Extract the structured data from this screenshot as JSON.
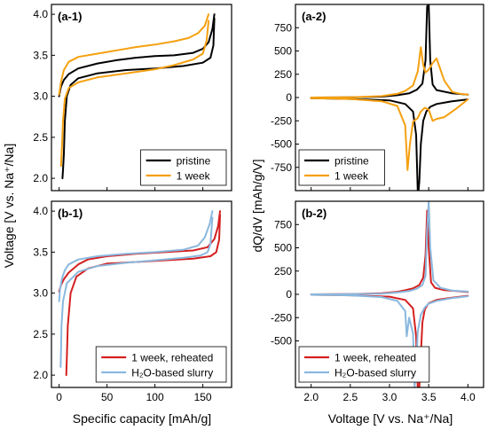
{
  "figure": {
    "left_ylabel": "Voltage [V vs. Na⁺/Na]",
    "left_xlabel": "Specific capacity [mAh/g]",
    "right_ylabel": "dQ/dV [mAh/g/V]",
    "right_xlabel": "Voltage [V vs. Na⁺/Na]"
  },
  "chart_data": [
    {
      "type": "line",
      "panel": "(a-1)",
      "title": "(a-1)",
      "xlabel": "Specific capacity [mAh/g]",
      "ylabel": "Voltage [V vs. Na⁺/Na]",
      "xlim": [
        -8,
        180
      ],
      "ylim": [
        1.85,
        4.12
      ],
      "xticks": [
        0,
        50,
        100,
        150
      ],
      "yticks": [
        2.0,
        2.5,
        3.0,
        3.5,
        4.0
      ],
      "ytick_labels": [
        "2.0",
        "2.5",
        "3.0",
        "3.5",
        "4.0"
      ],
      "show_xtick_labels": false,
      "legend_position": "bottom-right",
      "series": [
        {
          "name": "pristine",
          "color": "#000000",
          "charge": {
            "x": [
              0,
              2,
              5,
              10,
              20,
              40,
              60,
              80,
              100,
              120,
              140,
              150,
              156,
              160,
              162
            ],
            "y": [
              3.0,
              3.12,
              3.2,
              3.27,
              3.34,
              3.4,
              3.44,
              3.47,
              3.49,
              3.5,
              3.53,
              3.58,
              3.66,
              3.82,
              4.0
            ]
          },
          "discharge": {
            "x": [
              162,
              161,
              158,
              150,
              130,
              100,
              70,
              40,
              20,
              12,
              8,
              6,
              5,
              4,
              3.5
            ],
            "y": [
              3.95,
              3.62,
              3.47,
              3.41,
              3.37,
              3.34,
              3.32,
              3.28,
              3.22,
              3.14,
              3.0,
              2.7,
              2.3,
              2.1,
              2.0
            ]
          }
        },
        {
          "name": "1 week",
          "color": "#f5a010",
          "charge": {
            "x": [
              0,
              2,
              5,
              10,
              20,
              40,
              60,
              80,
              100,
              120,
              135,
              145,
              152,
              156
            ],
            "y": [
              3.02,
              3.18,
              3.32,
              3.42,
              3.48,
              3.52,
              3.56,
              3.6,
              3.63,
              3.67,
              3.71,
              3.77,
              3.86,
              4.0
            ]
          },
          "discharge": {
            "x": [
              156,
              154,
              150,
              140,
              120,
              100,
              70,
              40,
              20,
              10,
              6,
              4,
              3,
              2
            ],
            "y": [
              3.92,
              3.68,
              3.52,
              3.45,
              3.38,
              3.33,
              3.28,
              3.23,
              3.17,
              3.1,
              2.97,
              2.7,
              2.4,
              2.15
            ]
          }
        }
      ]
    },
    {
      "type": "line",
      "panel": "(a-2)",
      "title": "(a-2)",
      "xlabel": "",
      "ylabel": "dQ/dV [mAh/g/V]",
      "xlim": [
        1.8,
        4.2
      ],
      "ylim": [
        -1000,
        1000
      ],
      "xticks": [
        2.0,
        2.5,
        3.0,
        3.5,
        4.0
      ],
      "yticks": [
        -750,
        -500,
        -250,
        0,
        250,
        500,
        750
      ],
      "ytick_labels": [
        "-750",
        "-500",
        "-250",
        "0",
        "250",
        "500",
        "750"
      ],
      "show_xtick_labels": false,
      "legend_position": "bottom-left",
      "series": [
        {
          "name": "pristine",
          "color": "#000000",
          "charge": {
            "x": [
              2.0,
              2.5,
              2.9,
              3.1,
              3.25,
              3.35,
              3.42,
              3.46,
              3.48,
              3.5,
              3.52,
              3.55,
              3.6,
              3.8,
              4.0
            ],
            "y": [
              0,
              2,
              10,
              25,
              45,
              85,
              150,
              400,
              980,
              1000,
              400,
              140,
              80,
              45,
              30
            ]
          },
          "discharge": {
            "x": [
              4.0,
              3.8,
              3.6,
              3.52,
              3.47,
              3.43,
              3.4,
              3.38,
              3.37,
              3.36,
              3.34,
              3.3,
              3.2,
              3.0,
              2.5,
              2.0
            ],
            "y": [
              -20,
              -40,
              -70,
              -100,
              -150,
              -250,
              -500,
              -900,
              -1000,
              -1000,
              -400,
              -150,
              -70,
              -30,
              -15,
              -8
            ]
          }
        },
        {
          "name": "1 week",
          "color": "#f5a010",
          "charge": {
            "x": [
              2.0,
              2.5,
              2.9,
              3.1,
              3.2,
              3.3,
              3.36,
              3.4,
              3.43,
              3.46,
              3.5,
              3.55,
              3.6,
              3.7,
              3.8,
              3.9,
              4.0
            ],
            "y": [
              0,
              3,
              15,
              40,
              70,
              130,
              280,
              540,
              350,
              270,
              300,
              370,
              420,
              180,
              60,
              40,
              30
            ]
          },
          "discharge": {
            "x": [
              4.0,
              3.85,
              3.7,
              3.6,
              3.55,
              3.5,
              3.45,
              3.4,
              3.36,
              3.3,
              3.26,
              3.23,
              3.2,
              3.1,
              2.9,
              2.5,
              2.0
            ],
            "y": [
              -20,
              -120,
              -210,
              -230,
              -250,
              -130,
              -110,
              -150,
              -220,
              -260,
              -500,
              -780,
              -300,
              -90,
              -40,
              -15,
              -8
            ]
          }
        }
      ]
    },
    {
      "type": "line",
      "panel": "(b-1)",
      "title": "(b-1)",
      "xlabel": "Specific capacity [mAh/g]",
      "ylabel": "Voltage [V vs. Na⁺/Na]",
      "xlim": [
        -8,
        180
      ],
      "ylim": [
        1.85,
        4.12
      ],
      "xticks": [
        0,
        50,
        100,
        150
      ],
      "yticks": [
        2.0,
        2.5,
        3.0,
        3.5,
        4.0
      ],
      "ytick_labels": [
        "2.0",
        "2.5",
        "3.0",
        "3.5",
        "4.0"
      ],
      "show_xtick_labels": true,
      "legend_position": "bottom-right",
      "series": [
        {
          "name": "1 week, reheated",
          "color": "#d42020",
          "charge": {
            "x": [
              0,
              2,
              5,
              10,
              20,
              30,
              50,
              80,
              110,
              140,
              155,
              162,
              166,
              168
            ],
            "y": [
              3.02,
              3.1,
              3.17,
              3.25,
              3.35,
              3.41,
              3.45,
              3.48,
              3.5,
              3.52,
              3.56,
              3.66,
              3.82,
              4.0
            ]
          },
          "discharge": {
            "x": [
              168,
              167,
              164,
              158,
              140,
              110,
              80,
              50,
              30,
              18,
              12,
              9,
              8,
              7.5
            ],
            "y": [
              3.95,
              3.65,
              3.5,
              3.45,
              3.42,
              3.4,
              3.38,
              3.36,
              3.3,
              3.2,
              3.0,
              2.6,
              2.2,
              2.0
            ]
          }
        },
        {
          "name": "H₂O-based slurry",
          "color": "#8ab8de",
          "charge": {
            "x": [
              0,
              1,
              3,
              6,
              10,
              20,
              40,
              70,
              100,
              130,
              145,
              152,
              157,
              160
            ],
            "y": [
              2.9,
              3.05,
              3.18,
              3.28,
              3.35,
              3.41,
              3.45,
              3.48,
              3.5,
              3.53,
              3.58,
              3.68,
              3.84,
              4.0
            ]
          },
          "discharge": {
            "x": [
              160,
              158,
              155,
              148,
              130,
              100,
              70,
              40,
              20,
              8,
              4,
              2.5,
              2,
              1.5
            ],
            "y": [
              3.92,
              3.6,
              3.5,
              3.46,
              3.43,
              3.4,
              3.37,
              3.33,
              3.26,
              3.12,
              2.9,
              2.6,
              2.3,
              2.1
            ]
          }
        }
      ]
    },
    {
      "type": "line",
      "panel": "(b-2)",
      "title": "(b-2)",
      "xlabel": "Voltage [V vs. Na⁺/Na]",
      "ylabel": "dQ/dV [mAh/g/V]",
      "xlim": [
        1.8,
        4.2
      ],
      "ylim": [
        -1000,
        1000
      ],
      "xticks": [
        2.0,
        2.5,
        3.0,
        3.5,
        4.0
      ],
      "xtick_labels": [
        "2.0",
        "2.5",
        "3.0",
        "3.5",
        "4.0"
      ],
      "yticks": [
        -500,
        -250,
        0,
        250,
        500,
        750
      ],
      "ytick_labels": [
        "-500",
        "-250",
        "0",
        "250",
        "500",
        "750"
      ],
      "show_xtick_labels": true,
      "legend_position": "bottom-left",
      "series": [
        {
          "name": "1 week, reheated",
          "color": "#d42020",
          "charge": {
            "x": [
              2.0,
              2.5,
              2.9,
              3.1,
              3.2,
              3.3,
              3.38,
              3.43,
              3.46,
              3.48,
              3.5,
              3.53,
              3.58,
              3.7,
              3.85,
              4.0
            ],
            "y": [
              0,
              3,
              12,
              28,
              45,
              65,
              100,
              180,
              420,
              900,
              500,
              130,
              70,
              45,
              35,
              25
            ]
          },
          "discharge": {
            "x": [
              4.0,
              3.8,
              3.6,
              3.5,
              3.45,
              3.42,
              3.4,
              3.38,
              3.36,
              3.34,
              3.3,
              3.2,
              3.0,
              2.5,
              2.0
            ],
            "y": [
              -15,
              -35,
              -60,
              -95,
              -160,
              -300,
              -650,
              -1000,
              -1000,
              -450,
              -150,
              -60,
              -25,
              -10,
              -5
            ]
          }
        },
        {
          "name": "H₂O-based slurry",
          "color": "#8ab8de",
          "charge": {
            "x": [
              2.0,
              2.5,
              2.9,
              3.1,
              3.25,
              3.35,
              3.42,
              3.46,
              3.48,
              3.5,
              3.52,
              3.56,
              3.65,
              3.8,
              4.0
            ],
            "y": [
              0,
              2,
              8,
              20,
              35,
              60,
              100,
              200,
              700,
              1000,
              500,
              150,
              70,
              40,
              30
            ]
          },
          "discharge": {
            "x": [
              4.0,
              3.8,
              3.6,
              3.5,
              3.45,
              3.4,
              3.36,
              3.34,
              3.32,
              3.3,
              3.25,
              3.22,
              3.2,
              3.1,
              2.9,
              2.5,
              2.0
            ],
            "y": [
              -20,
              -40,
              -70,
              -100,
              -140,
              -220,
              -400,
              -800,
              -1000,
              -420,
              -250,
              -450,
              -180,
              -70,
              -30,
              -10,
              -5
            ]
          }
        }
      ]
    }
  ]
}
